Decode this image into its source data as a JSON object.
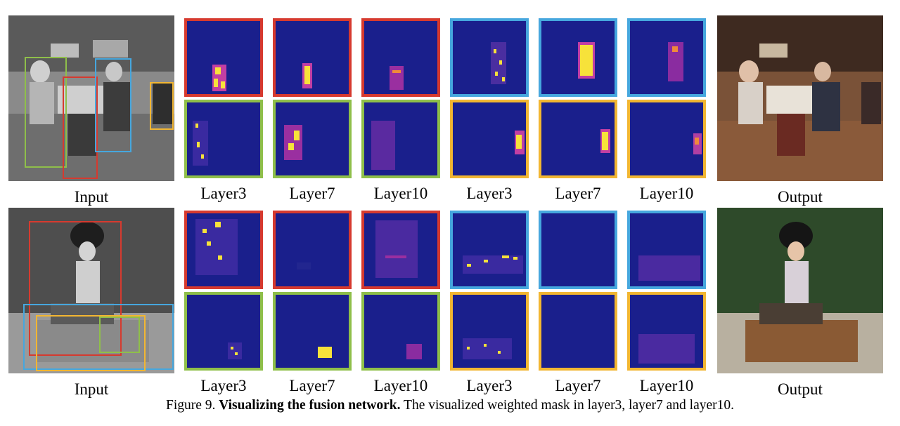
{
  "figure": {
    "number_text": "Figure 9.",
    "title": "Visualizing the fusion network.",
    "description": "The visualized weighted mask in layer3, layer7 and layer10."
  },
  "colors": {
    "red": "#d63a2f",
    "green": "#8fbf4a",
    "blue": "#46a7de",
    "yellow": "#f2b632",
    "mask_bg": "#1a1f8c",
    "mask_hot": "#f7e23a",
    "mask_warm": "#c23fa3"
  },
  "rows": [
    {
      "input_label": "Input",
      "output_label": "Output",
      "layer_labels": [
        "Layer3",
        "Layer7",
        "Layer10",
        "Layer3",
        "Layer7",
        "Layer10"
      ]
    },
    {
      "input_label": "Input",
      "output_label": "Output",
      "layer_labels": [
        "Layer3",
        "Layer7",
        "Layer10",
        "Layer3",
        "Layer7",
        "Layer10"
      ]
    }
  ]
}
